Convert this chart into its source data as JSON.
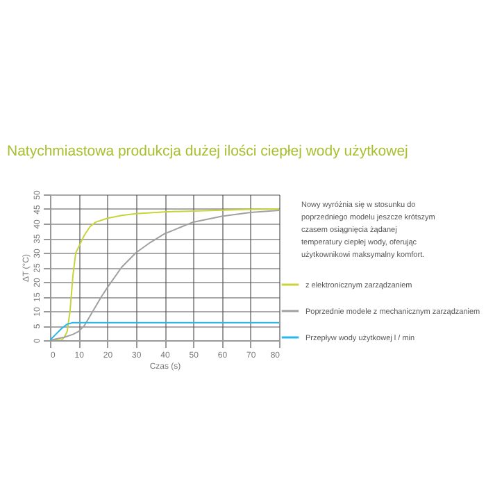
{
  "chart_data": {
    "type": "line",
    "title": "Natychmiastowa produkcja dużej ilości ciepłej wody użytkowej",
    "xlabel": "Czas (s)",
    "ylabel": "ΔT (°C)",
    "annotations": [
      "Nowy wyróżnia się w stosunku do poprzedniego modelu jeszcze krótszym czasem osiągnięcia żądanej temperatury ciepłej wody, oferując użytkownikowi maksymalny komfort."
    ],
    "xlim": [
      0,
      80
    ],
    "xticks": [
      0,
      10,
      20,
      30,
      40,
      50,
      60,
      70,
      80
    ],
    "ylim": [
      0,
      50
    ],
    "yticks": [
      0,
      5,
      10,
      15,
      20,
      25,
      30,
      35,
      40,
      45,
      50
    ],
    "grid": true,
    "legend": "right",
    "marker": "none",
    "line_style": "solid",
    "series": [
      {
        "name": "z elektronicznym zarządzaniem",
        "color": "#c8d43a",
        "x": [
          0,
          4,
          5,
          6,
          7,
          8,
          9,
          10,
          12,
          14,
          16,
          20,
          25,
          30,
          40,
          50,
          60,
          70,
          80
        ],
        "values": [
          0,
          0,
          1,
          3,
          10,
          22,
          30,
          32,
          36,
          39,
          40.5,
          41.8,
          42.8,
          43.4,
          44,
          44.3,
          44.6,
          44.9,
          45
        ]
      },
      {
        "name": "Poprzednie modele z mechanicznym zarządzaniem",
        "color": "#a0a0a0",
        "x": [
          0,
          5,
          8,
          10,
          12,
          15,
          18,
          20,
          25,
          30,
          35,
          40,
          45,
          50,
          60,
          70,
          80
        ],
        "values": [
          0,
          1,
          2,
          3,
          5,
          10,
          15,
          18,
          25,
          30,
          33.5,
          36.5,
          38.5,
          40.5,
          42.5,
          43.8,
          44.5
        ]
      },
      {
        "name": "Przepływ wody użytkowej l / min",
        "color": "#29b6e8",
        "x": [
          0,
          2,
          4,
          6,
          8,
          10,
          80
        ],
        "values": [
          0,
          2,
          4,
          5.5,
          6,
          6,
          6
        ]
      }
    ]
  }
}
